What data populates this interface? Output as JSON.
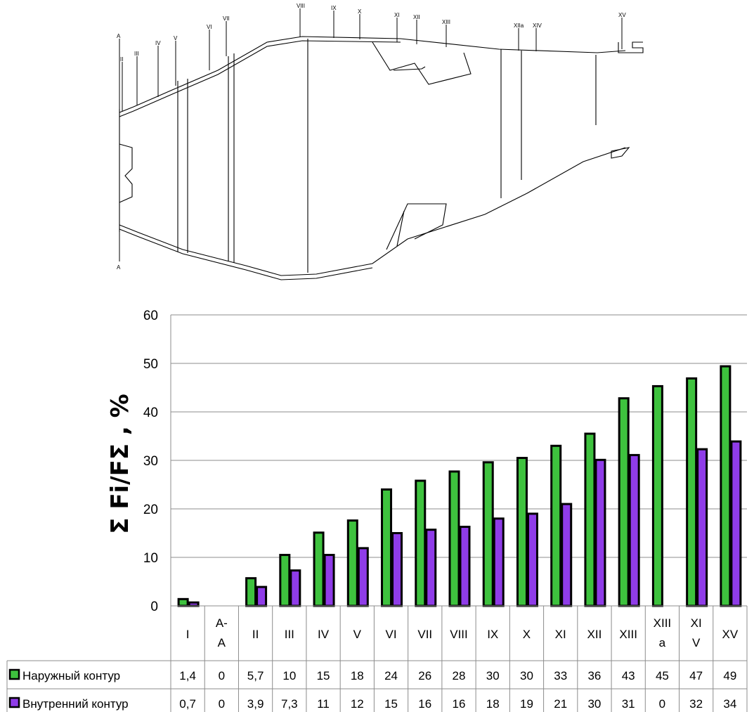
{
  "drawing": {
    "section_marks": [
      "A",
      "II",
      "III",
      "IV",
      "V",
      "VI",
      "VII",
      "VIII",
      "IX",
      "X",
      "XI",
      "XII",
      "XIII",
      "XIIa",
      "XIV",
      "XV"
    ],
    "bottom_mark": "A"
  },
  "chart_data": {
    "type": "bar",
    "title": "",
    "xlabel": "",
    "ylabel": "Σ Fi/FΣ , %",
    "ylim": [
      0,
      60
    ],
    "yticks": [
      0,
      10,
      20,
      30,
      40,
      50,
      60
    ],
    "grid": true,
    "categories": [
      "I",
      "A-\nA",
      "II",
      "III",
      "IV",
      "V",
      "VI",
      "VII",
      "VIII",
      "IX",
      "X",
      "XI",
      "XII",
      "XIII",
      "XIII\na",
      "XI\nV",
      "XV"
    ],
    "series": [
      {
        "name": "Наружный контур",
        "color": "#3ec23e",
        "values": [
          1.4,
          0,
          5.7,
          10.5,
          15.1,
          17.6,
          24,
          25.8,
          27.7,
          29.6,
          30.5,
          33,
          35.5,
          42.8,
          45.3,
          46.9,
          49.4
        ],
        "labels": [
          "1,4",
          "0",
          "5,7",
          "10",
          "15",
          "18",
          "24",
          "26",
          "28",
          "30",
          "30",
          "33",
          "36",
          "43",
          "45",
          "47",
          "49"
        ]
      },
      {
        "name": "Внутренний контур",
        "color": "#8f3ce8",
        "values": [
          0.7,
          0,
          3.9,
          7.3,
          10.5,
          11.9,
          15,
          15.7,
          16.3,
          18,
          19,
          21,
          30.1,
          31.1,
          0,
          32.3,
          33.9
        ],
        "labels": [
          "0,7",
          "0",
          "3,9",
          "7,3",
          "11",
          "12",
          "15",
          "16",
          "16",
          "18",
          "19",
          "21",
          "30",
          "31",
          "0",
          "32",
          "34"
        ]
      }
    ]
  }
}
